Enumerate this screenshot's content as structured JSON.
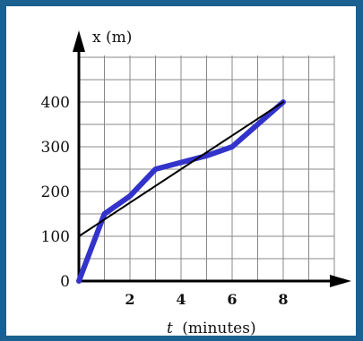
{
  "chart_data": {
    "type": "line",
    "xlabel": "(minutes)",
    "xlabel_var": "t",
    "ylabel": "x (m)",
    "x_ticks": [
      2,
      4,
      6,
      8
    ],
    "y_ticks": [
      0,
      100,
      200,
      300,
      400
    ],
    "xlim": [
      0,
      10
    ],
    "ylim": [
      0,
      500
    ],
    "grid": true,
    "series": [
      {
        "color": "#3333cc",
        "points": [
          [
            0,
            0
          ],
          [
            1,
            150
          ],
          [
            2,
            190
          ],
          [
            3,
            250
          ],
          [
            4,
            265
          ],
          [
            5,
            280
          ],
          [
            6,
            300
          ],
          [
            7,
            350
          ],
          [
            8,
            400
          ]
        ]
      },
      {
        "color": "#000000",
        "points": [
          [
            0,
            100
          ],
          [
            8,
            400
          ]
        ]
      }
    ]
  }
}
